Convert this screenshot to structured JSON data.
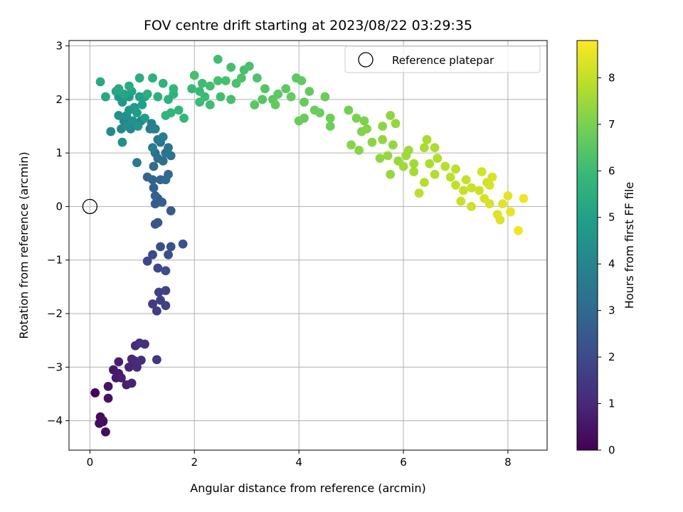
{
  "chart_data": {
    "type": "scatter",
    "title": "FOV centre drift starting at 2023/08/22 03:29:35",
    "xlabel": "Angular distance from reference (arcmin)",
    "ylabel": "Rotation from reference (arcmin)",
    "xlim": [
      -0.4,
      8.75
    ],
    "ylim": [
      -4.55,
      3.1
    ],
    "xticks": [
      0,
      2,
      4,
      6,
      8
    ],
    "yticks": [
      -4,
      -3,
      -2,
      -1,
      0,
      1,
      2,
      3
    ],
    "grid": true,
    "legend": {
      "position": "top-right",
      "entries": [
        "Reference platepar"
      ]
    },
    "reference_point": {
      "label": "Reference platepar",
      "x": 0,
      "y": 0
    },
    "colorbar": {
      "label": "Hours from first FF file",
      "colormap": "viridis",
      "range": [
        0,
        8.8
      ],
      "ticks": [
        0,
        1,
        2,
        3,
        4,
        5,
        6,
        7,
        8
      ]
    },
    "colormap_stops": [
      "#440154",
      "#482878",
      "#3e4989",
      "#31688e",
      "#26828e",
      "#1f9e89",
      "#35b779",
      "#6ece58",
      "#b5de2b",
      "#fde725"
    ],
    "series": [
      {
        "points": [
          [
            0.1,
            -3.48,
            0.05
          ],
          [
            0.2,
            -3.93,
            0.15
          ],
          [
            0.18,
            -4.05,
            0.2
          ],
          [
            0.25,
            -4.02,
            0.25
          ],
          [
            0.3,
            -4.21,
            0.28
          ],
          [
            0.25,
            -4.0,
            0.3
          ],
          [
            0.35,
            -3.58,
            0.4
          ],
          [
            0.35,
            -3.36,
            0.45
          ],
          [
            0.45,
            -3.05,
            0.55
          ],
          [
            0.5,
            -3.2,
            0.6
          ],
          [
            0.55,
            -3.12,
            0.65
          ],
          [
            0.6,
            -3.2,
            0.7
          ],
          [
            0.55,
            -2.9,
            0.75
          ],
          [
            0.7,
            -3.33,
            0.8
          ],
          [
            0.8,
            -3.3,
            0.85
          ],
          [
            0.75,
            -3.0,
            0.9
          ],
          [
            0.8,
            -2.85,
            0.95
          ],
          [
            0.85,
            -2.88,
            1.0
          ],
          [
            0.9,
            -3.0,
            1.05
          ],
          [
            0.87,
            -2.6,
            1.1
          ],
          [
            0.98,
            -2.87,
            1.15
          ],
          [
            1.05,
            -2.57,
            1.2
          ],
          [
            0.95,
            -2.55,
            1.25
          ],
          [
            1.28,
            -2.86,
            1.4
          ],
          [
            1.2,
            -1.82,
            1.55
          ],
          [
            1.28,
            -1.95,
            1.6
          ],
          [
            1.35,
            -1.75,
            1.65
          ],
          [
            1.32,
            -1.6,
            1.7
          ],
          [
            1.45,
            -1.57,
            1.75
          ],
          [
            1.45,
            -1.85,
            1.8
          ],
          [
            1.1,
            -1.02,
            1.9
          ],
          [
            1.3,
            -1.15,
            1.95
          ],
          [
            1.2,
            -0.9,
            2.0
          ],
          [
            1.45,
            -1.2,
            2.05
          ],
          [
            1.35,
            -0.75,
            2.1
          ],
          [
            1.5,
            -0.9,
            2.15
          ],
          [
            1.55,
            -0.75,
            2.2
          ],
          [
            1.78,
            -0.7,
            2.25
          ],
          [
            1.25,
            -0.33,
            2.35
          ],
          [
            1.3,
            -0.3,
            2.4
          ],
          [
            1.55,
            -0.08,
            2.45
          ],
          [
            1.3,
            0.15,
            2.55
          ],
          [
            1.25,
            0.05,
            2.6
          ],
          [
            1.38,
            0.08,
            2.65
          ],
          [
            1.25,
            0.2,
            2.7
          ],
          [
            1.22,
            0.35,
            2.75
          ],
          [
            1.1,
            0.55,
            2.8
          ],
          [
            1.2,
            0.5,
            2.85
          ],
          [
            1.35,
            0.5,
            2.9
          ],
          [
            1.5,
            0.6,
            2.95
          ],
          [
            1.45,
            0.5,
            3.0
          ],
          [
            1.22,
            0.75,
            3.1
          ],
          [
            1.3,
            0.9,
            3.15
          ],
          [
            1.4,
            0.85,
            3.2
          ],
          [
            1.25,
            1.0,
            3.25
          ],
          [
            1.45,
            1.0,
            3.3
          ],
          [
            1.35,
            1.2,
            3.35
          ],
          [
            1.55,
            0.95,
            3.4
          ],
          [
            1.5,
            1.1,
            3.45
          ],
          [
            1.3,
            1.25,
            3.5
          ],
          [
            1.25,
            1.45,
            3.55
          ],
          [
            1.15,
            1.45,
            3.6
          ],
          [
            0.9,
            0.82,
            3.65
          ],
          [
            1.2,
            1.1,
            3.7
          ],
          [
            1.4,
            1.3,
            3.75
          ],
          [
            1.18,
            1.55,
            3.85
          ],
          [
            1.22,
            1.45,
            3.9
          ],
          [
            0.98,
            1.6,
            3.95
          ],
          [
            0.78,
            1.45,
            4.05
          ],
          [
            0.65,
            1.6,
            4.1
          ],
          [
            0.6,
            1.45,
            4.15
          ],
          [
            0.4,
            1.4,
            4.2
          ],
          [
            0.62,
            1.2,
            4.3
          ],
          [
            0.72,
            1.5,
            4.35
          ],
          [
            0.55,
            1.7,
            4.4
          ],
          [
            0.7,
            1.7,
            4.45
          ],
          [
            0.82,
            1.6,
            4.5
          ],
          [
            0.92,
            1.5,
            4.55
          ],
          [
            0.75,
            1.8,
            4.6
          ],
          [
            0.62,
            1.95,
            4.65
          ],
          [
            0.55,
            2.05,
            4.7
          ],
          [
            0.75,
            2.05,
            4.75
          ],
          [
            0.85,
            1.85,
            4.8
          ],
          [
            0.9,
            1.75,
            4.85
          ],
          [
            1.05,
            1.65,
            4.9
          ],
          [
            1.0,
            1.9,
            4.95
          ],
          [
            0.95,
            2.05,
            5.0
          ],
          [
            1.05,
            2.05,
            5.05
          ],
          [
            0.8,
            2.15,
            5.1
          ],
          [
            0.65,
            2.1,
            5.15
          ],
          [
            0.5,
            2.15,
            5.2
          ],
          [
            0.3,
            2.05,
            5.25
          ],
          [
            0.2,
            2.33,
            5.3
          ],
          [
            0.55,
            2.2,
            5.35
          ],
          [
            0.75,
            2.25,
            5.4
          ],
          [
            0.95,
            2.4,
            5.45
          ],
          [
            1.1,
            2.1,
            5.5
          ],
          [
            1.3,
            2.05,
            5.55
          ],
          [
            1.5,
            2.0,
            5.6
          ],
          [
            1.6,
            2.1,
            5.65
          ],
          [
            1.45,
            1.7,
            5.7
          ],
          [
            1.55,
            1.75,
            5.75
          ],
          [
            1.7,
            1.8,
            5.8
          ],
          [
            1.8,
            1.65,
            5.85
          ],
          [
            1.95,
            2.2,
            5.9
          ],
          [
            2.1,
            2.15,
            5.95
          ],
          [
            2.2,
            2.05,
            6.0
          ],
          [
            2.15,
            2.3,
            6.05
          ],
          [
            2.3,
            2.25,
            6.1
          ],
          [
            2.45,
            2.35,
            6.15
          ],
          [
            2.0,
            2.45,
            6.2
          ],
          [
            1.2,
            2.4,
            5.6
          ],
          [
            1.4,
            2.3,
            5.7
          ],
          [
            1.6,
            2.2,
            5.75
          ],
          [
            2.1,
            1.95,
            6.0
          ],
          [
            2.3,
            1.9,
            6.05
          ],
          [
            2.5,
            2.05,
            6.1
          ],
          [
            2.7,
            2.0,
            6.15
          ],
          [
            2.6,
            2.35,
            6.2
          ],
          [
            2.8,
            2.3,
            6.25
          ],
          [
            2.45,
            2.75,
            6.1
          ],
          [
            2.7,
            2.6,
            6.15
          ],
          [
            2.95,
            2.55,
            6.2
          ],
          [
            3.05,
            2.62,
            6.25
          ],
          [
            2.9,
            2.4,
            6.3
          ],
          [
            3.2,
            2.4,
            6.35
          ],
          [
            3.35,
            2.2,
            6.4
          ],
          [
            3.3,
            2.0,
            6.45
          ],
          [
            3.15,
            1.9,
            6.5
          ],
          [
            3.5,
            2.0,
            6.55
          ],
          [
            3.6,
            2.1,
            6.6
          ],
          [
            3.55,
            1.9,
            6.65
          ],
          [
            3.75,
            2.2,
            6.6
          ],
          [
            3.95,
            2.4,
            6.55
          ],
          [
            4.05,
            2.35,
            6.6
          ],
          [
            3.85,
            2.05,
            6.7
          ],
          [
            4.2,
            2.15,
            6.65
          ],
          [
            4.1,
            1.95,
            6.7
          ],
          [
            4.0,
            1.6,
            6.75
          ],
          [
            4.1,
            1.65,
            6.75
          ],
          [
            4.3,
            1.8,
            6.8
          ],
          [
            4.4,
            1.75,
            6.8
          ],
          [
            4.5,
            2.05,
            6.78
          ],
          [
            4.6,
            1.65,
            6.85
          ],
          [
            4.6,
            1.5,
            6.85
          ],
          [
            4.95,
            1.8,
            6.9
          ],
          [
            5.1,
            1.65,
            7.0
          ],
          [
            5.25,
            1.6,
            7.05
          ],
          [
            5.2,
            1.4,
            7.1
          ],
          [
            5.3,
            1.45,
            7.15
          ],
          [
            5.0,
            1.15,
            7.2
          ],
          [
            5.15,
            1.05,
            7.2
          ],
          [
            5.4,
            1.2,
            7.25
          ],
          [
            5.6,
            1.5,
            7.25
          ],
          [
            5.75,
            1.7,
            7.3
          ],
          [
            5.6,
            1.25,
            7.35
          ],
          [
            5.8,
            1.15,
            7.35
          ],
          [
            5.85,
            1.55,
            7.4
          ],
          [
            5.7,
            0.95,
            7.4
          ],
          [
            5.9,
            0.85,
            7.45
          ],
          [
            6.1,
            1.05,
            7.5
          ],
          [
            6.2,
            0.8,
            7.55
          ],
          [
            6.0,
            0.75,
            7.55
          ],
          [
            6.2,
            0.65,
            7.6
          ],
          [
            6.4,
            1.1,
            7.65
          ],
          [
            6.45,
            1.25,
            7.65
          ],
          [
            6.5,
            0.8,
            7.7
          ],
          [
            6.65,
            0.9,
            7.75
          ],
          [
            6.6,
            0.6,
            7.8
          ],
          [
            6.8,
            0.75,
            7.85
          ],
          [
            6.4,
            0.45,
            7.85
          ],
          [
            6.3,
            0.25,
            7.9
          ],
          [
            6.9,
            0.55,
            7.9
          ],
          [
            7.0,
            0.7,
            7.95
          ],
          [
            7.0,
            0.4,
            8.0
          ],
          [
            7.15,
            0.3,
            8.05
          ],
          [
            7.2,
            0.5,
            8.05
          ],
          [
            7.3,
            0.35,
            8.1
          ],
          [
            7.1,
            0.1,
            8.1
          ],
          [
            7.3,
            0.0,
            8.15
          ],
          [
            7.45,
            0.3,
            8.15
          ],
          [
            7.6,
            0.45,
            8.2
          ],
          [
            7.55,
            0.15,
            8.25
          ],
          [
            7.65,
            0.05,
            8.3
          ],
          [
            7.8,
            -0.15,
            8.35
          ],
          [
            7.9,
            0.05,
            8.4
          ],
          [
            8.0,
            0.2,
            8.45
          ],
          [
            8.05,
            -0.1,
            8.5
          ],
          [
            8.2,
            -0.45,
            8.55
          ],
          [
            8.3,
            0.15,
            8.6
          ],
          [
            7.7,
            0.55,
            8.3
          ],
          [
            7.5,
            0.65,
            8.2
          ],
          [
            5.55,
            0.9,
            7.35
          ],
          [
            5.75,
            0.6,
            7.4
          ],
          [
            6.05,
            0.95,
            7.5
          ],
          [
            6.6,
            1.1,
            7.7
          ],
          [
            7.65,
            0.4,
            8.25
          ],
          [
            7.85,
            -0.25,
            8.35
          ]
        ]
      }
    ]
  }
}
